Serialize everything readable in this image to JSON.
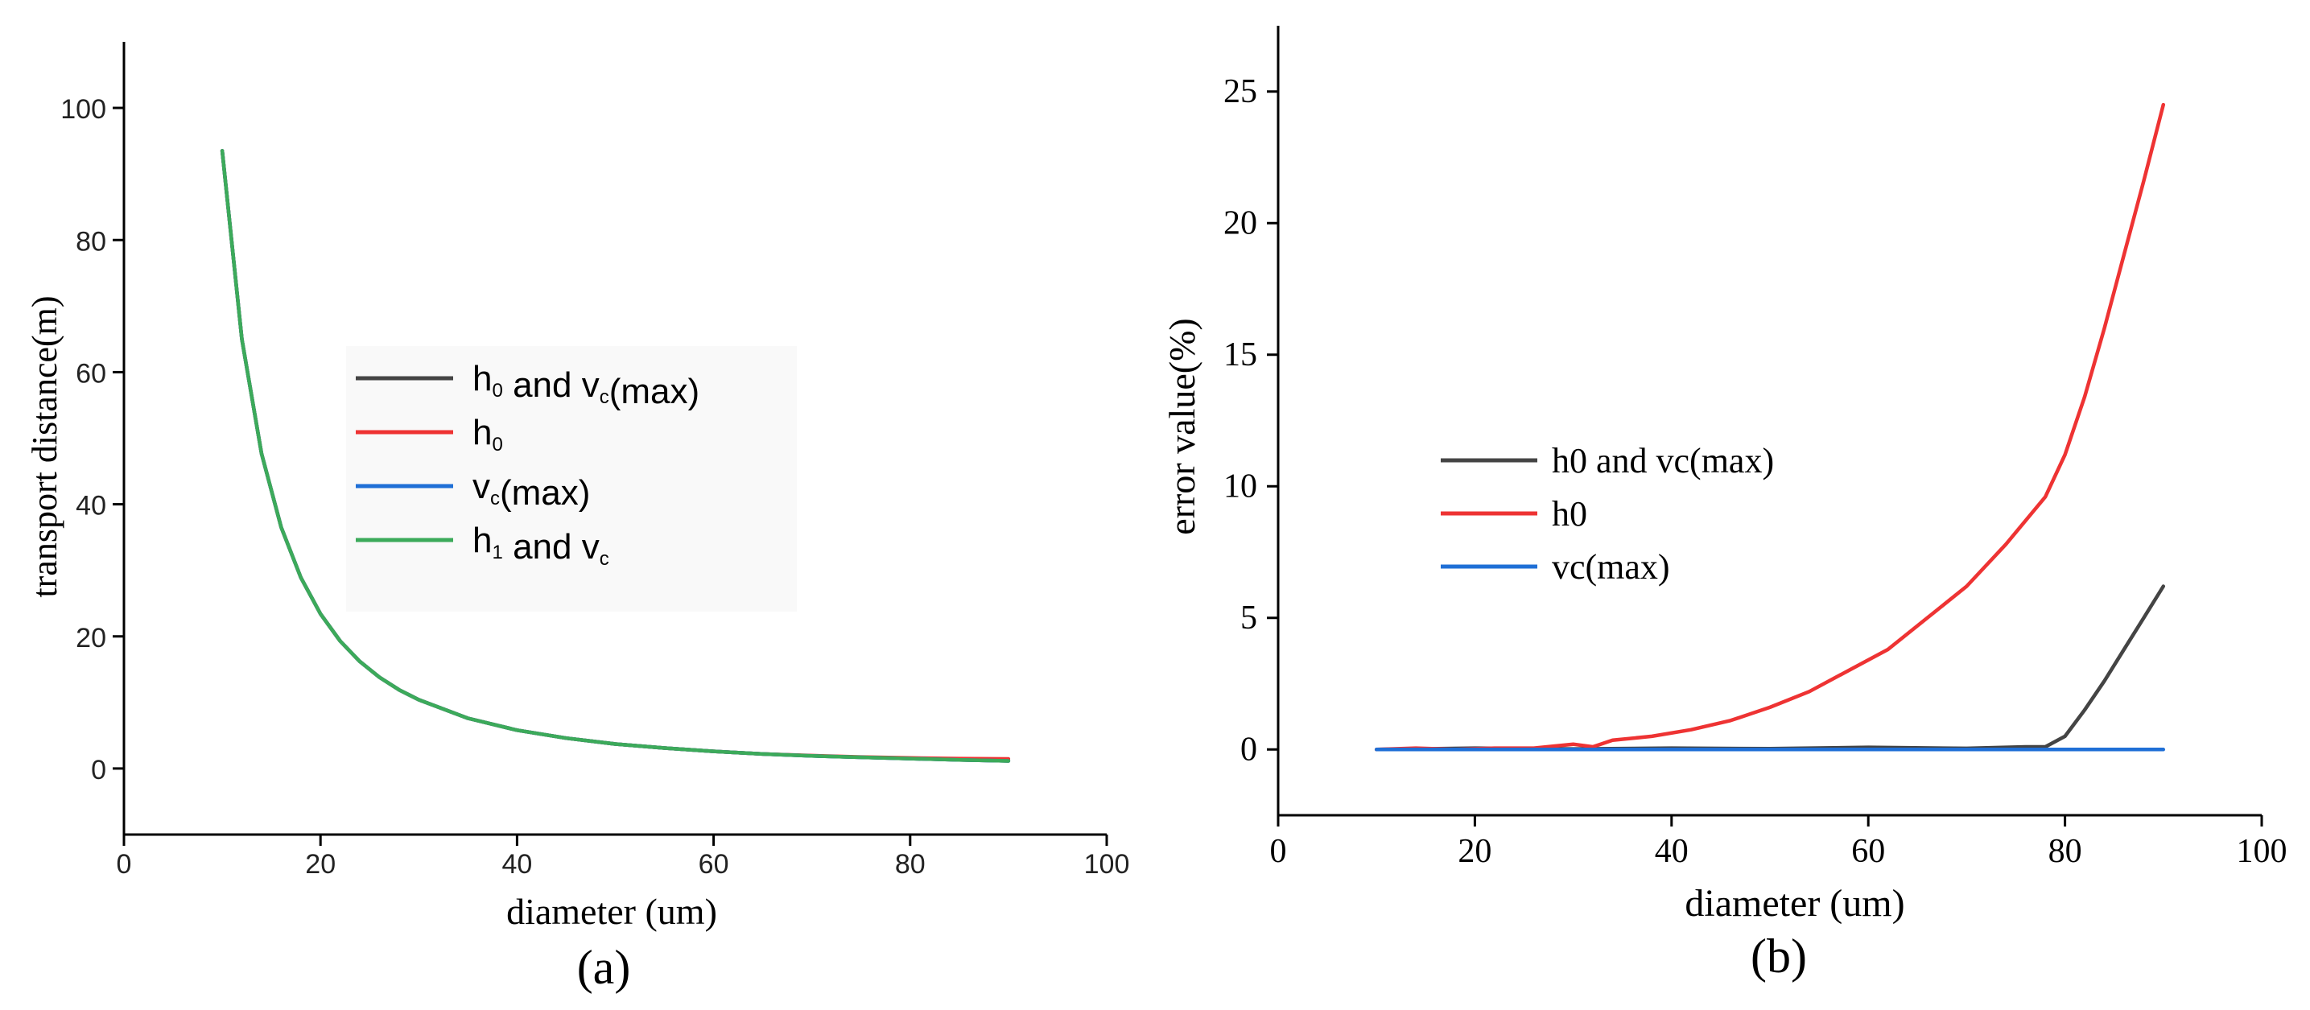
{
  "chart_data": [
    {
      "type": "line",
      "panel_label": "(a)",
      "xlabel": "diameter (um)",
      "ylabel": "transport distance(m)",
      "xlim": [
        0,
        100
      ],
      "ylim": [
        -10,
        110
      ],
      "xticks": [
        0,
        20,
        40,
        60,
        80,
        100
      ],
      "yticks": [
        0,
        20,
        40,
        60,
        80,
        100
      ],
      "x": [
        10,
        12,
        14,
        16,
        18,
        20,
        22,
        24,
        26,
        28,
        30,
        35,
        40,
        45,
        50,
        55,
        60,
        65,
        70,
        75,
        80,
        85,
        90
      ],
      "legend": [
        {
          "main": "h",
          "sub": "0",
          "rest": " and v",
          "sub2": "c",
          "tail": "(max)",
          "color": "#444444"
        },
        {
          "main": "h",
          "sub": "0",
          "rest": "",
          "sub2": "",
          "tail": "",
          "color": "#ee3333"
        },
        {
          "main": "v",
          "sub": "c",
          "rest": "(max)",
          "sub2": "",
          "tail": "",
          "color": "#1f6fd6"
        },
        {
          "main": "h",
          "sub": "1",
          "rest": " and v",
          "sub2": "c",
          "tail": "",
          "color": "#3caa5a"
        }
      ],
      "series": [
        {
          "name": "h0 and vc(max)",
          "color": "#444444",
          "values": [
            93.5,
            65.0,
            47.7,
            36.5,
            28.9,
            23.4,
            19.3,
            16.2,
            13.8,
            11.9,
            10.4,
            7.6,
            5.8,
            4.6,
            3.7,
            3.1,
            2.6,
            2.2,
            1.9,
            1.7,
            1.5,
            1.3,
            1.15
          ]
        },
        {
          "name": "h0",
          "color": "#ee3333",
          "values": [
            93.5,
            65.0,
            47.7,
            36.5,
            28.9,
            23.4,
            19.3,
            16.2,
            13.8,
            11.9,
            10.4,
            7.6,
            5.8,
            4.6,
            3.7,
            3.1,
            2.6,
            2.2,
            1.95,
            1.75,
            1.6,
            1.5,
            1.45
          ]
        },
        {
          "name": "vc(max)",
          "color": "#1f6fd6",
          "values": [
            93.5,
            65.0,
            47.7,
            36.5,
            28.9,
            23.4,
            19.3,
            16.2,
            13.8,
            11.9,
            10.4,
            7.6,
            5.8,
            4.6,
            3.7,
            3.1,
            2.6,
            2.2,
            1.9,
            1.7,
            1.5,
            1.3,
            1.15
          ]
        },
        {
          "name": "h1 and vc",
          "color": "#3caa5a",
          "values": [
            93.5,
            65.0,
            47.7,
            36.5,
            28.9,
            23.4,
            19.3,
            16.2,
            13.8,
            11.9,
            10.4,
            7.6,
            5.8,
            4.6,
            3.7,
            3.1,
            2.6,
            2.2,
            1.9,
            1.7,
            1.5,
            1.3,
            1.15
          ]
        }
      ]
    },
    {
      "type": "line",
      "panel_label": "(b)",
      "xlabel": "diameter (um)",
      "ylabel": "error value(%)",
      "xlim": [
        0,
        100
      ],
      "ylim": [
        -2.5,
        27.5
      ],
      "xticks": [
        0,
        20,
        40,
        60,
        80,
        100
      ],
      "yticks": [
        0,
        5,
        10,
        15,
        20,
        25
      ],
      "legend": [
        {
          "label": "h0 and vc(max)",
          "color": "#444444"
        },
        {
          "label": "h0",
          "color": "#ee3333"
        },
        {
          "label": "vc(max)",
          "color": "#1f6fd6"
        }
      ],
      "series": [
        {
          "name": "h0 and vc(max)",
          "color": "#444444",
          "x": [
            10,
            20,
            30,
            40,
            50,
            60,
            70,
            76,
            78,
            80,
            82,
            84,
            86,
            88,
            90
          ],
          "values": [
            0.0,
            0.05,
            0.02,
            0.05,
            0.03,
            0.08,
            0.04,
            0.1,
            0.1,
            0.5,
            1.5,
            2.6,
            3.8,
            5.0,
            6.2
          ]
        },
        {
          "name": "h0",
          "color": "#ee3333",
          "x": [
            10,
            14,
            18,
            22,
            26,
            30,
            32,
            34,
            38,
            42,
            46,
            50,
            54,
            58,
            62,
            66,
            70,
            74,
            78,
            80,
            82,
            84,
            86,
            88,
            90
          ],
          "values": [
            0.0,
            0.05,
            0.0,
            0.05,
            0.05,
            0.2,
            0.1,
            0.35,
            0.5,
            0.75,
            1.1,
            1.6,
            2.2,
            3.0,
            3.8,
            5.0,
            6.2,
            7.8,
            9.6,
            11.2,
            13.4,
            16.0,
            18.8,
            21.6,
            24.5
          ]
        },
        {
          "name": "vc(max)",
          "color": "#1f6fd6",
          "x": [
            10,
            20,
            30,
            40,
            50,
            60,
            70,
            80,
            90
          ],
          "values": [
            0.0,
            0.0,
            0.0,
            0.0,
            0.0,
            0.0,
            0.0,
            0.0,
            0.0
          ]
        }
      ]
    }
  ]
}
